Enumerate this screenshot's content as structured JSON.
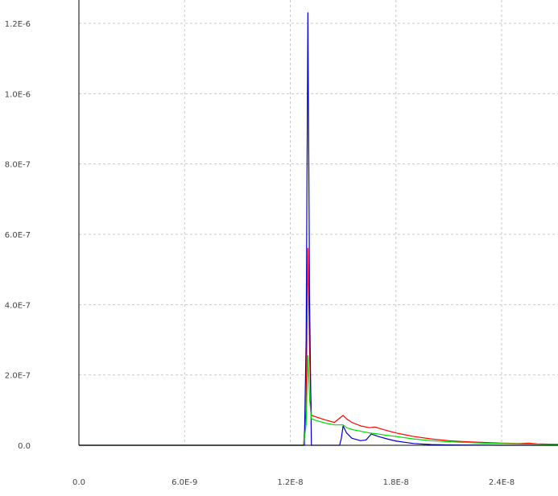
{
  "chart_data": {
    "type": "line",
    "title": "",
    "xlabel": "",
    "ylabel": "",
    "xlim": [
      0,
      2.72e-08
    ],
    "ylim": [
      0,
      1.2e-06
    ],
    "grid": true,
    "x_ticks": [
      {
        "value": 0,
        "label": "0.0"
      },
      {
        "value": 6e-09,
        "label": "6.0E-9"
      },
      {
        "value": 1.2e-08,
        "label": "1.2E-8"
      },
      {
        "value": 1.8e-08,
        "label": "1.8E-8"
      },
      {
        "value": 2.4e-08,
        "label": "2.4E-8"
      }
    ],
    "y_ticks": [
      {
        "value": 0,
        "label": "0.0"
      },
      {
        "value": 2e-07,
        "label": "2.0E-7"
      },
      {
        "value": 4e-07,
        "label": "4.0E-7"
      },
      {
        "value": 6e-07,
        "label": "6.0E-7"
      },
      {
        "value": 8e-07,
        "label": "8.0E-7"
      },
      {
        "value": 1e-06,
        "label": "1.0E-6"
      },
      {
        "value": 1.2e-06,
        "label": "1.2E-6"
      }
    ],
    "series": [
      {
        "color": "#ff0000",
        "points": [
          [
            0,
            0
          ],
          [
            1.275e-08,
            0
          ],
          [
            1.29e-08,
            1e-07
          ],
          [
            1.3e-08,
            5.6e-07
          ],
          [
            1.31e-08,
            2.5e-07
          ],
          [
            1.32e-08,
            8.5e-08
          ],
          [
            1.35e-08,
            8e-08
          ],
          [
            1.4e-08,
            7.2e-08
          ],
          [
            1.45e-08,
            6.5e-08
          ],
          [
            1.5e-08,
            8.5e-08
          ],
          [
            1.52e-08,
            7.5e-08
          ],
          [
            1.55e-08,
            6.5e-08
          ],
          [
            1.6e-08,
            5.5e-08
          ],
          [
            1.65e-08,
            5e-08
          ],
          [
            1.68e-08,
            5.2e-08
          ],
          [
            1.72e-08,
            4.6e-08
          ],
          [
            1.8e-08,
            3.5e-08
          ],
          [
            1.9e-08,
            2.5e-08
          ],
          [
            2e-08,
            1.8e-08
          ],
          [
            2.1e-08,
            1.3e-08
          ],
          [
            2.2e-08,
            1e-08
          ],
          [
            2.3e-08,
            8e-09
          ],
          [
            2.4e-08,
            6e-09
          ],
          [
            2.5e-08,
            5e-09
          ],
          [
            2.55e-08,
            6e-09
          ],
          [
            2.6e-08,
            4e-09
          ],
          [
            2.7e-08,
            3e-09
          ],
          [
            2.72e-08,
            3e-09
          ]
        ]
      },
      {
        "color": "#0000cc",
        "points": [
          [
            0,
            0
          ],
          [
            1.28e-08,
            0
          ],
          [
            1.29e-08,
            3e-07
          ],
          [
            1.3e-08,
            1.23e-06
          ],
          [
            1.31e-08,
            4e-07
          ],
          [
            1.32e-08,
            0
          ],
          [
            1.48e-08,
            0
          ],
          [
            1.49e-08,
            2e-08
          ],
          [
            1.5e-08,
            5.5e-08
          ],
          [
            1.52e-08,
            3.5e-08
          ],
          [
            1.55e-08,
            2e-08
          ],
          [
            1.6e-08,
            1.3e-08
          ],
          [
            1.63e-08,
            1.5e-08
          ],
          [
            1.66e-08,
            3.2e-08
          ],
          [
            1.7e-08,
            2.5e-08
          ],
          [
            1.75e-08,
            1.8e-08
          ],
          [
            1.8e-08,
            1.2e-08
          ],
          [
            1.9e-08,
            5e-09
          ],
          [
            2e-08,
            2e-09
          ],
          [
            2.1e-08,
            1e-09
          ],
          [
            2.4e-08,
            0
          ],
          [
            2.72e-08,
            0
          ]
        ]
      },
      {
        "color": "#00dd00",
        "points": [
          [
            0,
            0
          ],
          [
            1.275e-08,
            0
          ],
          [
            1.29e-08,
            6e-08
          ],
          [
            1.3e-08,
            2.55e-07
          ],
          [
            1.31e-08,
            1.3e-07
          ],
          [
            1.32e-08,
            7.5e-08
          ],
          [
            1.35e-08,
            7e-08
          ],
          [
            1.4e-08,
            6.3e-08
          ],
          [
            1.45e-08,
            5.8e-08
          ],
          [
            1.5e-08,
            5.8e-08
          ],
          [
            1.52e-08,
            5e-08
          ],
          [
            1.55e-08,
            4.5e-08
          ],
          [
            1.6e-08,
            4e-08
          ],
          [
            1.65e-08,
            3.5e-08
          ],
          [
            1.7e-08,
            3.2e-08
          ],
          [
            1.75e-08,
            2.8e-08
          ],
          [
            1.8e-08,
            2.5e-08
          ],
          [
            1.9e-08,
            1.8e-08
          ],
          [
            2e-08,
            1.3e-08
          ],
          [
            2.1e-08,
            1e-08
          ],
          [
            2.2e-08,
            8e-09
          ],
          [
            2.3e-08,
            6e-09
          ],
          [
            2.4e-08,
            5e-09
          ],
          [
            2.5e-08,
            4e-09
          ],
          [
            2.6e-08,
            3e-09
          ],
          [
            2.72e-08,
            2e-09
          ]
        ]
      }
    ]
  }
}
